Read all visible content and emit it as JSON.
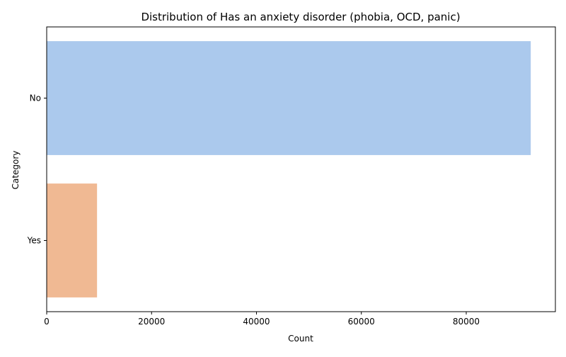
{
  "chart_data": {
    "type": "bar",
    "orientation": "horizontal",
    "title": "Distribution of Has an anxiety disorder (phobia, OCD, panic)",
    "xlabel": "Count",
    "ylabel": "Category",
    "categories": [
      "No",
      "Yes"
    ],
    "values": [
      92300,
      9600
    ],
    "colors": [
      "#abc9ed",
      "#f0b993"
    ],
    "xlim": [
      0,
      97000
    ],
    "xticks": [
      0,
      20000,
      40000,
      60000,
      80000
    ],
    "xtick_labels": [
      "0",
      "20000",
      "40000",
      "60000",
      "80000"
    ],
    "grid": false,
    "legend": false
  }
}
